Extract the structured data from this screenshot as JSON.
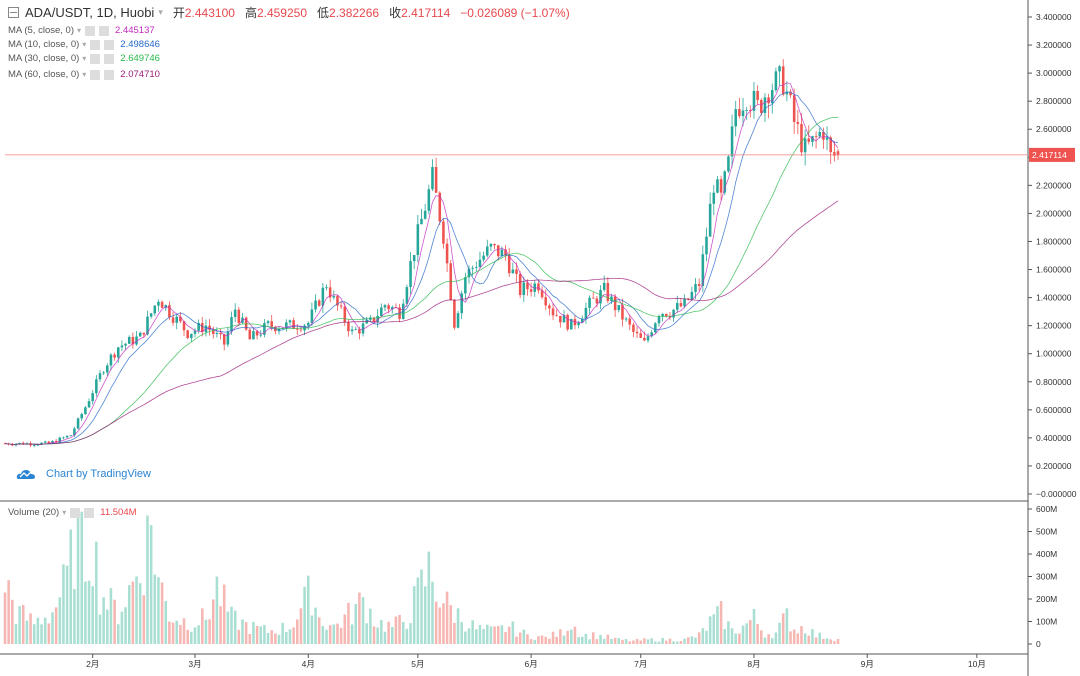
{
  "header": {
    "symbol": "ADA/USDT, 1D, Huobi",
    "open_label": "开",
    "open": "2.443100",
    "high_label": "高",
    "high": "2.459250",
    "low_label": "低",
    "low": "2.382266",
    "close_label": "收",
    "close": "2.417114",
    "change": "−0.026089 (−1.07%)"
  },
  "ma_lines": [
    {
      "label": "MA (5, close, 0)",
      "value": "2.445137",
      "color": "#c32ac2"
    },
    {
      "label": "MA (10, close, 0)",
      "value": "2.498646",
      "color": "#2568c8"
    },
    {
      "label": "MA (30, close, 0)",
      "value": "2.649746",
      "color": "#2ab84a"
    },
    {
      "label": "MA (60, close, 0)",
      "value": "2.074710",
      "color": "#9c1d7a"
    }
  ],
  "volume": {
    "label": "Volume (20)",
    "value": "11.504M"
  },
  "watermark": "Chart by TradingView",
  "last_price_label": "2.417114",
  "colors": {
    "up": "#26a69a",
    "down": "#ef5350",
    "up_vol": "#a9dfd3",
    "down_vol": "#f6b7b3"
  },
  "chart_data": {
    "type": "candlestick",
    "price_axis": {
      "min": 0,
      "max": 3.4,
      "ticks": [
        "−0.000000",
        "0.200000",
        "0.400000",
        "0.600000",
        "0.800000",
        "1.000000",
        "1.200000",
        "1.400000",
        "1.600000",
        "1.800000",
        "2.000000",
        "2.200000",
        "2.400000",
        "2.600000",
        "2.800000",
        "3.000000",
        "3.200000",
        "3.400000"
      ],
      "values": [
        0,
        0.2,
        0.4,
        0.6,
        0.8,
        1.0,
        1.2,
        1.4,
        1.6,
        1.8,
        2.0,
        2.2,
        2.4,
        2.6,
        2.8,
        3.0,
        3.2,
        3.4
      ]
    },
    "volume_axis": {
      "max": 600,
      "ticks": [
        "0",
        "100M",
        "200M",
        "300M",
        "400M",
        "500M",
        "600M"
      ],
      "values": [
        0,
        100,
        200,
        300,
        400,
        500,
        600
      ]
    },
    "x_ticks": [
      {
        "label": "2月",
        "day": 24
      },
      {
        "label": "3月",
        "day": 52
      },
      {
        "label": "4月",
        "day": 83
      },
      {
        "label": "5月",
        "day": 113
      },
      {
        "label": "6月",
        "day": 144
      },
      {
        "label": "7月",
        "day": 174
      },
      {
        "label": "8月",
        "day": 205
      },
      {
        "label": "9月",
        "day": 236
      },
      {
        "label": "10月",
        "day": 266
      }
    ],
    "keypoints": [
      [
        0,
        0.36
      ],
      [
        12,
        0.36
      ],
      [
        18,
        0.42
      ],
      [
        22,
        0.62
      ],
      [
        27,
        0.9
      ],
      [
        31,
        1.05
      ],
      [
        37,
        1.12
      ],
      [
        42,
        1.4
      ],
      [
        45,
        1.3
      ],
      [
        50,
        1.15
      ],
      [
        55,
        1.2
      ],
      [
        60,
        1.07
      ],
      [
        63,
        1.32
      ],
      [
        67,
        1.1
      ],
      [
        72,
        1.2
      ],
      [
        78,
        1.2
      ],
      [
        83,
        1.22
      ],
      [
        88,
        1.5
      ],
      [
        90,
        1.38
      ],
      [
        95,
        1.15
      ],
      [
        100,
        1.22
      ],
      [
        104,
        1.35
      ],
      [
        108,
        1.3
      ],
      [
        112,
        1.75
      ],
      [
        117,
        2.25
      ],
      [
        120,
        1.85
      ],
      [
        123,
        1.22
      ],
      [
        126,
        1.55
      ],
      [
        129,
        1.65
      ],
      [
        133,
        1.75
      ],
      [
        137,
        1.7
      ],
      [
        141,
        1.45
      ],
      [
        146,
        1.5
      ],
      [
        150,
        1.3
      ],
      [
        155,
        1.2
      ],
      [
        160,
        1.35
      ],
      [
        164,
        1.45
      ],
      [
        168,
        1.3
      ],
      [
        172,
        1.15
      ],
      [
        175,
        1.07
      ],
      [
        179,
        1.3
      ],
      [
        182,
        1.3
      ],
      [
        186,
        1.35
      ],
      [
        190,
        1.5
      ],
      [
        192,
        1.85
      ],
      [
        194,
        2.22
      ],
      [
        196,
        2.1
      ],
      [
        198,
        2.35
      ],
      [
        200,
        2.75
      ],
      [
        203,
        2.85
      ],
      [
        206,
        2.75
      ],
      [
        209,
        2.9
      ],
      [
        213,
        2.95
      ],
      [
        216,
        2.65
      ],
      [
        219,
        2.45
      ],
      [
        221,
        2.5
      ],
      [
        224,
        2.6
      ],
      [
        226,
        2.4
      ],
      [
        228,
        2.42
      ]
    ],
    "volume_keypoints": [
      [
        0,
        300
      ],
      [
        3,
        150
      ],
      [
        8,
        100
      ],
      [
        13,
        150
      ],
      [
        17,
        300
      ],
      [
        20,
        540
      ],
      [
        22,
        420
      ],
      [
        24,
        500
      ],
      [
        26,
        250
      ],
      [
        28,
        200
      ],
      [
        31,
        150
      ],
      [
        35,
        280
      ],
      [
        38,
        400
      ],
      [
        40,
        560
      ],
      [
        42,
        300
      ],
      [
        45,
        140
      ],
      [
        50,
        100
      ],
      [
        55,
        120
      ],
      [
        58,
        260
      ],
      [
        62,
        120
      ],
      [
        67,
        80
      ],
      [
        72,
        60
      ],
      [
        78,
        80
      ],
      [
        84,
        250
      ],
      [
        86,
        120
      ],
      [
        90,
        80
      ],
      [
        95,
        150
      ],
      [
        98,
        200
      ],
      [
        102,
        100
      ],
      [
        106,
        80
      ],
      [
        110,
        120
      ],
      [
        113,
        230
      ],
      [
        116,
        340
      ],
      [
        119,
        230
      ],
      [
        121,
        180
      ],
      [
        125,
        120
      ],
      [
        129,
        70
      ],
      [
        134,
        60
      ],
      [
        138,
        80
      ],
      [
        143,
        40
      ],
      [
        148,
        30
      ],
      [
        152,
        50
      ],
      [
        155,
        100
      ],
      [
        158,
        40
      ],
      [
        162,
        40
      ],
      [
        168,
        20
      ],
      [
        172,
        15
      ],
      [
        176,
        20
      ],
      [
        180,
        20
      ],
      [
        186,
        20
      ],
      [
        190,
        40
      ],
      [
        193,
        100
      ],
      [
        196,
        140
      ],
      [
        199,
        60
      ],
      [
        202,
        80
      ],
      [
        205,
        120
      ],
      [
        208,
        50
      ],
      [
        211,
        50
      ],
      [
        214,
        130
      ],
      [
        216,
        70
      ],
      [
        219,
        80
      ],
      [
        222,
        40
      ],
      [
        226,
        30
      ],
      [
        228,
        20
      ]
    ],
    "ohlc_now": {
      "open": 2.4431,
      "high": 2.45925,
      "low": 2.382266,
      "close": 2.417114
    }
  }
}
